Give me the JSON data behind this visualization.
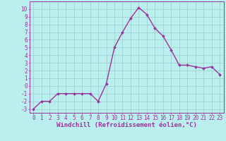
{
  "x": [
    0,
    1,
    2,
    3,
    4,
    5,
    6,
    7,
    8,
    9,
    10,
    11,
    12,
    13,
    14,
    15,
    16,
    17,
    18,
    19,
    20,
    21,
    22,
    23
  ],
  "y": [
    -3,
    -2,
    -2,
    -1,
    -1,
    -1,
    -1,
    -1,
    -2,
    0.3,
    5,
    7,
    8.8,
    10.2,
    9.3,
    7.5,
    6.5,
    4.7,
    2.7,
    2.7,
    2.5,
    2.3,
    2.5,
    1.5
  ],
  "line_color": "#993399",
  "marker_color": "#993399",
  "bg_color": "#bbeeee",
  "grid_color": "#99cccc",
  "xlabel": "Windchill (Refroidissement éolien,°C)",
  "xlabel_color": "#993399",
  "ylim": [
    -3.5,
    11
  ],
  "xlim": [
    -0.5,
    23.5
  ],
  "yticks": [
    -3,
    -2,
    -1,
    0,
    1,
    2,
    3,
    4,
    5,
    6,
    7,
    8,
    9,
    10
  ],
  "xticks": [
    0,
    1,
    2,
    3,
    4,
    5,
    6,
    7,
    8,
    9,
    10,
    11,
    12,
    13,
    14,
    15,
    16,
    17,
    18,
    19,
    20,
    21,
    22,
    23
  ],
  "tick_color": "#993399",
  "axis_color": "#993399",
  "spine_color": "#993399",
  "font_size": 5.5,
  "xlabel_fontsize": 6.5,
  "line_width": 1.0,
  "marker_size": 2.0
}
